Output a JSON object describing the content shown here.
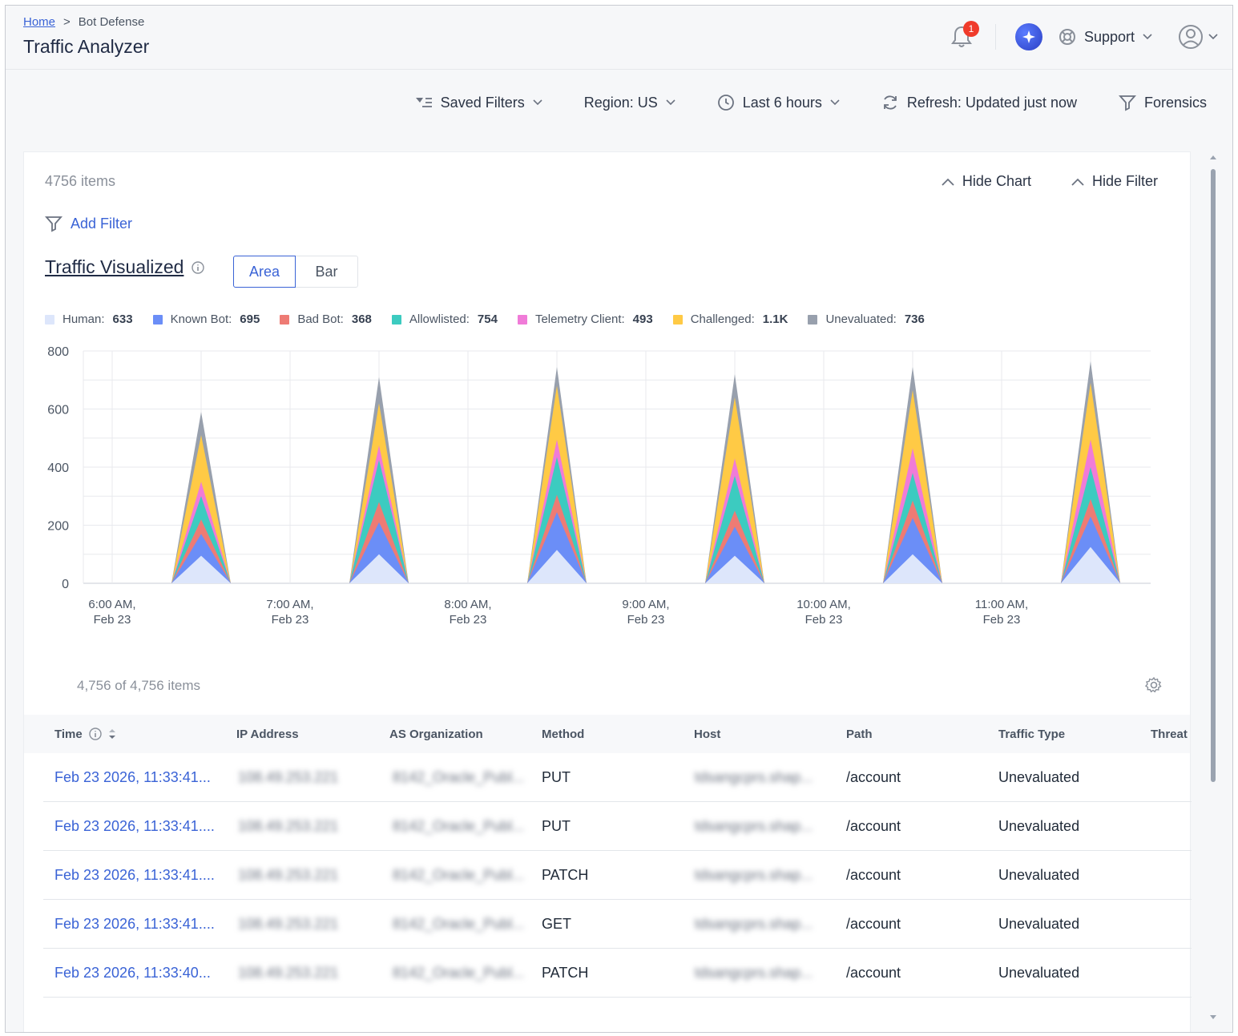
{
  "header": {
    "breadcrumb": {
      "home": "Home",
      "separator": ">",
      "current": "Bot Defense"
    },
    "title": "Traffic Analyzer",
    "notifications_count": "1",
    "support_label": "Support"
  },
  "toolbar": {
    "saved_filters": "Saved Filters",
    "region": "Region: US",
    "time_range": "Last 6 hours",
    "refresh": "Refresh: Updated just now",
    "forensics": "Forensics"
  },
  "panel": {
    "items_count": "4756 items",
    "hide_chart": "Hide Chart",
    "hide_filter": "Hide Filter",
    "add_filter": "Add Filter",
    "viz_title": "Traffic Visualized",
    "toggle": {
      "area": "Area",
      "bar": "Bar",
      "selected": "Area"
    }
  },
  "legend": [
    {
      "label": "Human:",
      "value": "633",
      "color": "#dde6fb"
    },
    {
      "label": "Known Bot:",
      "value": "695",
      "color": "#6b8ef7"
    },
    {
      "label": "Bad Bot:",
      "value": "368",
      "color": "#ee7b74"
    },
    {
      "label": "Allowlisted:",
      "value": "754",
      "color": "#3ccbc0"
    },
    {
      "label": "Telemetry Client:",
      "value": "493",
      "color": "#f07bd8"
    },
    {
      "label": "Challenged:",
      "value": "1.1K",
      "color": "#ffca45"
    },
    {
      "label": "Unevaluated:",
      "value": "736",
      "color": "#98a0ad"
    }
  ],
  "chart_data": {
    "type": "area",
    "stacked": true,
    "ylim": [
      0,
      800
    ],
    "yticks": [
      0,
      200,
      400,
      600,
      800
    ],
    "grid": true,
    "x_ticks": [
      [
        "6:00 AM,",
        "Feb 23"
      ],
      [
        "7:00 AM,",
        "Feb 23"
      ],
      [
        "8:00 AM,",
        "Feb 23"
      ],
      [
        "9:00 AM,",
        "Feb 23"
      ],
      [
        "10:00 AM,",
        "Feb 23"
      ],
      [
        "11:00 AM,",
        "Feb 23"
      ]
    ],
    "spikes": [
      {
        "time": "6:30 AM",
        "values": [
          95,
          75,
          50,
          80,
          50,
          160,
          80
        ]
      },
      {
        "time": "7:30 AM",
        "values": [
          100,
          110,
          70,
          145,
          50,
          145,
          90
        ]
      },
      {
        "time": "8:30 AM",
        "values": [
          115,
          130,
          60,
          130,
          60,
          185,
          65
        ]
      },
      {
        "time": "9:30 AM",
        "values": [
          95,
          100,
          55,
          120,
          60,
          210,
          80
        ]
      },
      {
        "time": "10:30 AM",
        "values": [
          100,
          125,
          60,
          95,
          85,
          200,
          80
        ]
      },
      {
        "time": "11:30 AM",
        "values": [
          125,
          105,
          60,
          110,
          95,
          195,
          75
        ]
      }
    ]
  },
  "table": {
    "count": "4,756 of 4,756 items",
    "columns": [
      "Time",
      "IP Address",
      "AS Organization",
      "Method",
      "Host",
      "Path",
      "Traffic Type",
      "Threat"
    ],
    "rows": [
      {
        "time": "Feb 23 2026, 11:33:41...",
        "ip": "108.49.253.221",
        "org": "8142_Oracle_Publ...",
        "method": "PUT",
        "host": "tdsangcprs.shap...",
        "path": "/account",
        "type": "Unevaluated"
      },
      {
        "time": "Feb 23 2026, 11:33:41....",
        "ip": "108.49.253.221",
        "org": "8142_Oracle_Publ...",
        "method": "PUT",
        "host": "tdsangcprs.shap...",
        "path": "/account",
        "type": "Unevaluated"
      },
      {
        "time": "Feb 23 2026, 11:33:41....",
        "ip": "108.49.253.221",
        "org": "8142_Oracle_Publ...",
        "method": "PATCH",
        "host": "tdsangcprs.shap...",
        "path": "/account",
        "type": "Unevaluated"
      },
      {
        "time": "Feb 23 2026, 11:33:41....",
        "ip": "108.49.253.221",
        "org": "8142_Oracle_Publ...",
        "method": "GET",
        "host": "tdsangcprs.shap...",
        "path": "/account",
        "type": "Unevaluated"
      },
      {
        "time": "Feb 23 2026, 11:33:40...",
        "ip": "108.49.253.221",
        "org": "8142_Oracle_Publ...",
        "method": "PATCH",
        "host": "tdsangcprs.shap...",
        "path": "/account",
        "type": "Unevaluated"
      }
    ]
  }
}
